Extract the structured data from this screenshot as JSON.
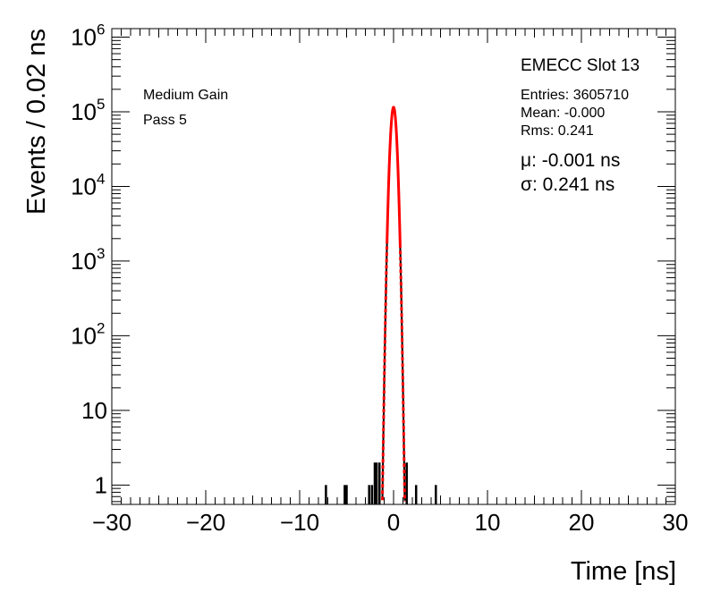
{
  "chart_data": {
    "type": "histogram",
    "xlabel": "Time [ns]",
    "ylabel": "Events / 0.02 ns",
    "xlim": [
      -30,
      30
    ],
    "ylim": [
      0.55,
      1300000
    ],
    "yscale": "log",
    "x_ticks": [
      -30,
      -20,
      -10,
      0,
      10,
      20,
      30
    ],
    "x_tick_labels": [
      "−30",
      "−20",
      "−10",
      "0",
      "10",
      "20",
      "30"
    ],
    "y_ticks": [
      1,
      10,
      100,
      1000,
      10000,
      100000,
      1000000
    ],
    "y_tick_labels": [
      {
        "base": "1",
        "exp": ""
      },
      {
        "base": "10",
        "exp": ""
      },
      {
        "base": "10",
        "exp": "2"
      },
      {
        "base": "10",
        "exp": "3"
      },
      {
        "base": "10",
        "exp": "4"
      },
      {
        "base": "10",
        "exp": "5"
      },
      {
        "base": "10",
        "exp": "6"
      }
    ],
    "annotations": {
      "gain": "Medium Gain",
      "pass": "Pass 5",
      "title": "EMECC Slot 13",
      "entries": "Entries: 3605710",
      "mean": "Mean: -0.000",
      "rms": "Rms: 0.241",
      "mu": "μ: -0.001 ns",
      "sigma": "σ: 0.241 ns"
    },
    "fit": {
      "type": "gaussian",
      "mu": -0.001,
      "sigma": 0.241,
      "peak": 115000,
      "color": "#ff0000"
    },
    "outlier_bins": [
      {
        "x": -7.2,
        "y": 1
      },
      {
        "x": -5.2,
        "y": 1
      },
      {
        "x": -5.0,
        "y": 1
      },
      {
        "x": -2.6,
        "y": 1
      },
      {
        "x": -2.3,
        "y": 1
      },
      {
        "x": -2.0,
        "y": 2
      },
      {
        "x": -1.8,
        "y": 2
      },
      {
        "x": -1.5,
        "y": 2
      },
      {
        "x": 1.4,
        "y": 2
      },
      {
        "x": 2.4,
        "y": 1
      },
      {
        "x": 4.5,
        "y": 1
      }
    ],
    "colors": {
      "histogram": "#000000",
      "fit": "#ff0000",
      "axes": "#000000"
    }
  }
}
